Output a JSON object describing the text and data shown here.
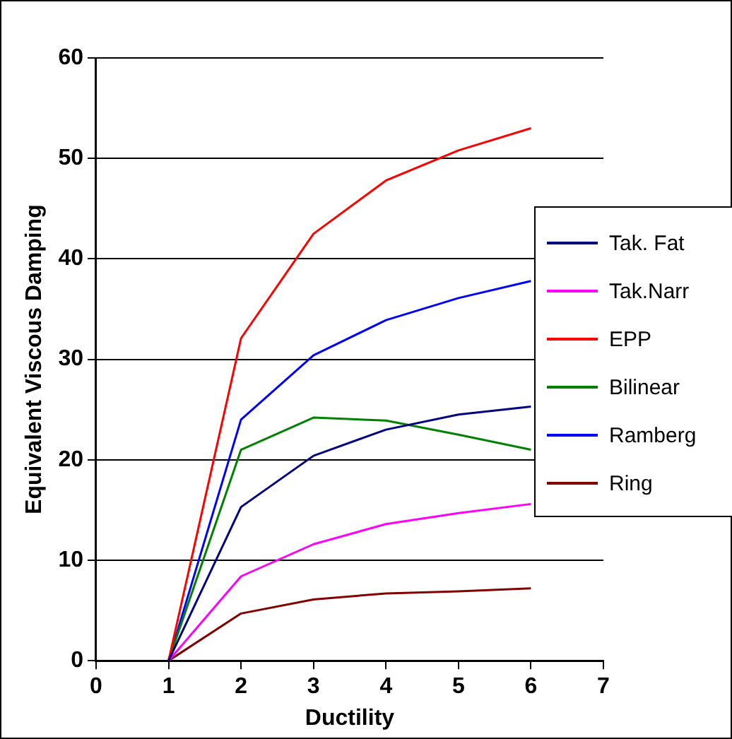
{
  "chart_data": {
    "type": "line",
    "xlabel": "Ductility",
    "ylabel": "Equivalent Viscous Damping",
    "x": [
      1,
      2,
      3,
      4,
      5,
      6
    ],
    "xlim": [
      0,
      7
    ],
    "xticks": [
      0,
      1,
      2,
      3,
      4,
      5,
      6,
      7
    ],
    "ylim": [
      0,
      60
    ],
    "yticks": [
      0,
      10,
      20,
      30,
      40,
      50,
      60
    ],
    "grid": "y",
    "legend": "right",
    "marker": "none",
    "line_style": "solid",
    "series": [
      {
        "name": "Tak. Fat",
        "color": "#000080",
        "values": [
          0,
          15.3,
          20.4,
          23,
          24.5,
          25.3
        ]
      },
      {
        "name": "Tak.Narr",
        "color": "#ff00ff",
        "values": [
          0,
          8.4,
          11.6,
          13.6,
          14.7,
          15.6
        ]
      },
      {
        "name": "EPP",
        "color": "#ff0000",
        "values": [
          0,
          32.1,
          42.5,
          47.8,
          50.8,
          53
        ]
      },
      {
        "name": "Bilinear",
        "color": "#008000",
        "values": [
          0,
          21,
          24.2,
          23.9,
          22.5,
          21
        ]
      },
      {
        "name": "Ramberg",
        "color": "#0000ff",
        "values": [
          0,
          24,
          30.4,
          33.9,
          36.1,
          37.8
        ]
      },
      {
        "name": "Ring",
        "color": "#800000",
        "values": [
          0,
          4.7,
          6.1,
          6.7,
          6.9,
          7.2
        ]
      }
    ]
  }
}
